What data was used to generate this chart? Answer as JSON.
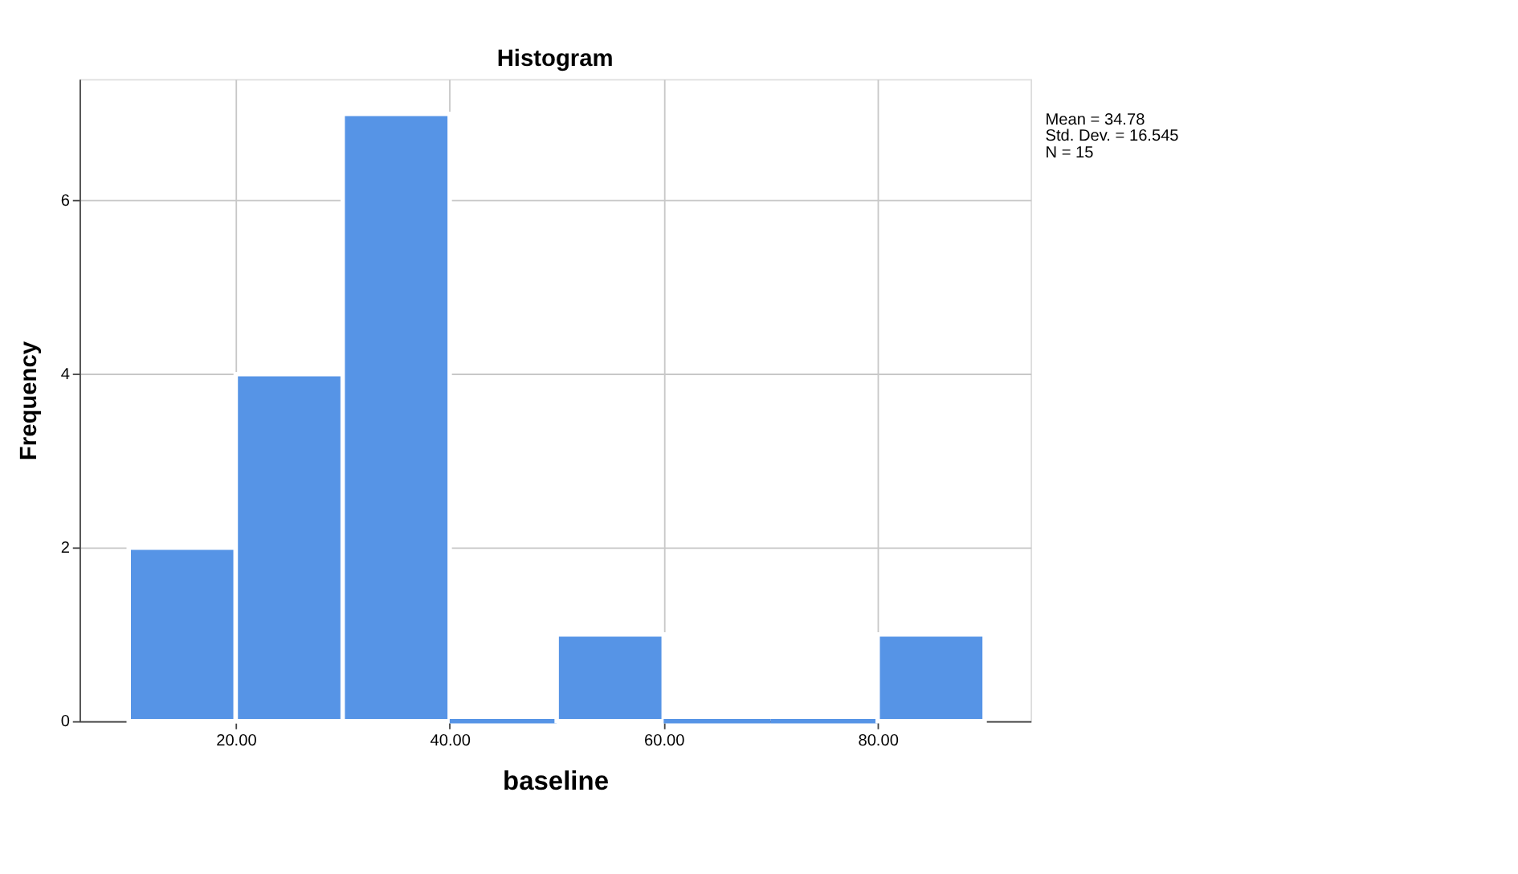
{
  "chart_data": {
    "type": "histogram",
    "title": "Histogram",
    "xlabel": "baseline",
    "ylabel": "Frequency",
    "bins": [
      10,
      20,
      30,
      40,
      50,
      60,
      70,
      80,
      90
    ],
    "values": [
      2,
      4,
      7,
      0,
      1,
      0,
      0,
      1
    ],
    "color": "#5694e6",
    "xlim": [
      5.4,
      94.3
    ],
    "xticks": [
      {
        "value": 20,
        "label": "20.00"
      },
      {
        "value": 40,
        "label": "40.00"
      },
      {
        "value": 60,
        "label": "60.00"
      },
      {
        "value": 80,
        "label": "80.00"
      }
    ],
    "ylim": [
      0,
      7.4
    ],
    "yticks": [
      0,
      2,
      4,
      6
    ],
    "grid": true,
    "legend": false,
    "annotations": [
      "Mean = 34.78",
      "Std. Dev. = 16.545",
      "N = 15"
    ]
  }
}
